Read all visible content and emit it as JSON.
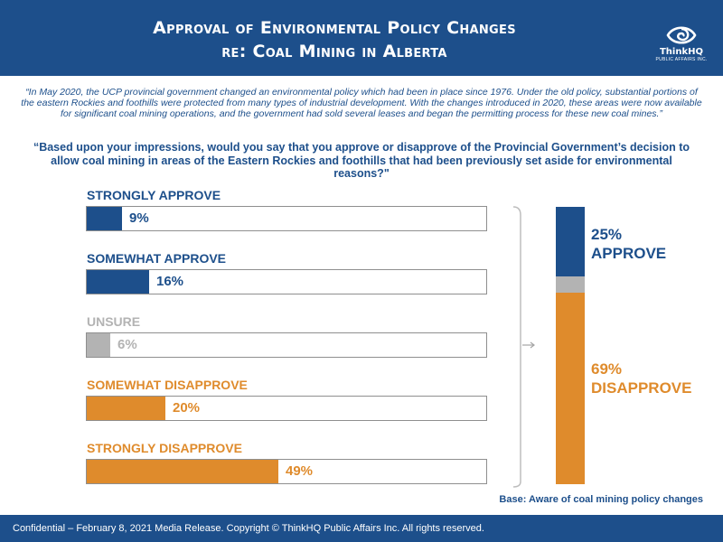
{
  "header": {
    "title_line1": "Approval of Environmental Policy Changes",
    "title_line2": "re: Coal Mining in Alberta",
    "logo_name": "ThinkHQ",
    "logo_sub": "PUBLIC AFFAIRS INC.",
    "logo_icon": "eye-swirl-icon"
  },
  "context": "“In May 2020, the UCP provincial government changed an environmental policy which had been in place since 1976. Under the old policy, substantial portions of the eastern Rockies and foothills were protected from many types of industrial development. With the changes introduced in 2020, these areas were now available for significant coal mining operations, and the government had sold several leases and began the permitting process for these new coal mines.”",
  "question": "“Based upon your impressions, would you say that you approve or disapprove of the Provincial Government’s decision to allow coal mining in areas of the Eastern Rockies and foothills that had been previously set aside for environmental reasons?\"",
  "colors": {
    "brand_blue": "#1d4f8b",
    "approve": "#1d4f8b",
    "unsure": "#b3b3b3",
    "disapprove": "#df8b2c"
  },
  "chart_data": {
    "type": "bar",
    "orientation": "horizontal",
    "unit": "%",
    "xlim": [
      0,
      100
    ],
    "categories": [
      "STRONGLY APPROVE",
      "SOMEWHAT APPROVE",
      "UNSURE",
      "SOMEWHAT DISAPPROVE",
      "STRONGLY DISAPPROVE"
    ],
    "values": [
      9,
      16,
      6,
      20,
      49
    ],
    "value_labels": [
      "9%",
      "16%",
      "6%",
      "20%",
      "49%"
    ],
    "bar_colors": [
      "#1d4f8b",
      "#1d4f8b",
      "#b3b3b3",
      "#df8b2c",
      "#df8b2c"
    ],
    "summary": {
      "type": "stacked-bar",
      "segments": [
        {
          "value": 25,
          "pct_label": "25%",
          "word": "APPROVE",
          "color": "#1d4f8b"
        },
        {
          "value": 6,
          "pct_label": "",
          "word": "",
          "color": "#b3b3b3"
        },
        {
          "value": 69,
          "pct_label": "69%",
          "word": "DISAPPROVE",
          "color": "#df8b2c"
        }
      ]
    }
  },
  "base_note": "Base: Aware of coal mining policy changes",
  "footer": "Confidential – February 8, 2021 Media Release. Copyright © ThinkHQ Public Affairs Inc. All rights reserved."
}
